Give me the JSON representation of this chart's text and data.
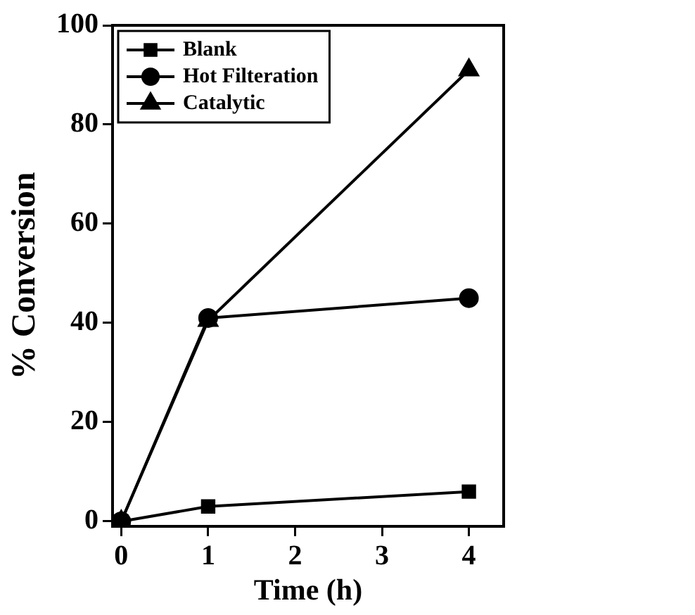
{
  "chart_data": {
    "type": "line",
    "xlabel": "Time (h)",
    "ylabel": "% Conversion",
    "x": [
      0,
      1,
      4
    ],
    "series": [
      {
        "name": "Blank",
        "color": "#000000",
        "marker": "square",
        "values": [
          0,
          3,
          6
        ]
      },
      {
        "name": "Hot Filteration",
        "color": "#000000",
        "marker": "circle",
        "values": [
          0,
          41,
          45
        ]
      },
      {
        "name": "Catalytic",
        "color": "#000000",
        "marker": "triangle",
        "values": [
          0,
          40.5,
          91
        ]
      }
    ],
    "xlim": [
      -0.1,
      4.4
    ],
    "xticks": [
      0,
      1,
      2,
      3,
      4
    ],
    "ylim": [
      -1,
      100
    ],
    "yticks": [
      0,
      20,
      40,
      60,
      80,
      100
    ],
    "grid": false,
    "legend": "top left",
    "line_style": "solid"
  }
}
